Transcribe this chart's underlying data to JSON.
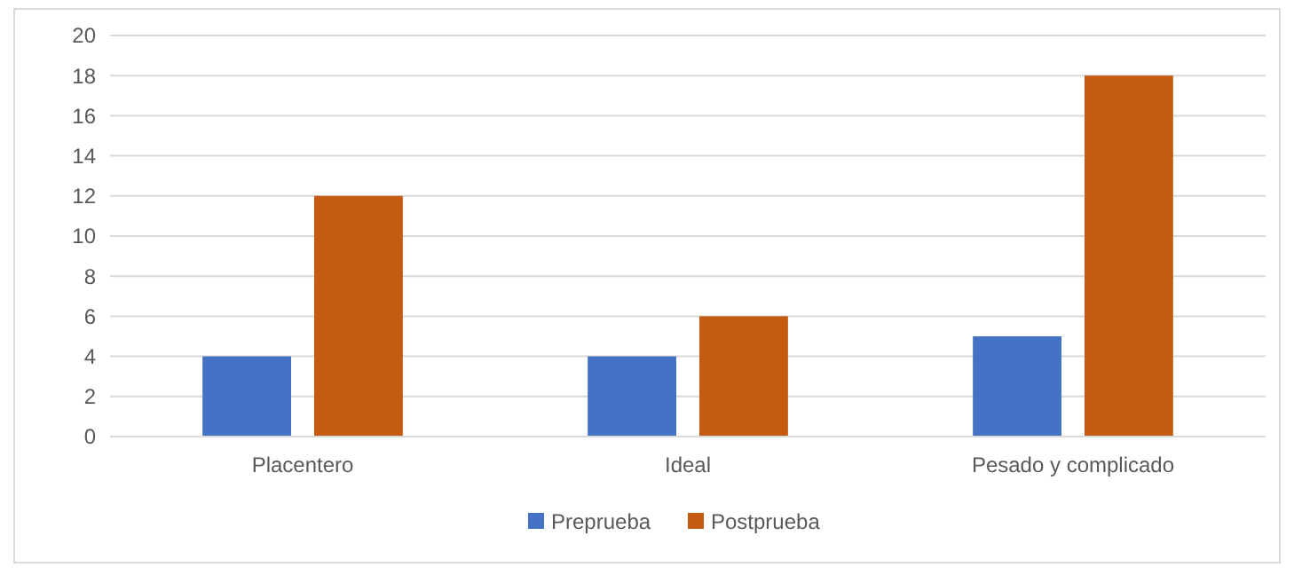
{
  "chart_data": {
    "type": "bar",
    "categories": [
      "Placentero",
      "Ideal",
      "Pesado y complicado"
    ],
    "series": [
      {
        "name": "Preprueba",
        "color": "#4472c4",
        "values": [
          4,
          4,
          5
        ]
      },
      {
        "name": "Postprueba",
        "color": "#c55a11",
        "values": [
          12,
          6,
          18
        ]
      }
    ],
    "ylim": [
      0,
      20
    ],
    "yticks": [
      0,
      2,
      4,
      6,
      8,
      10,
      12,
      14,
      16,
      18,
      20
    ],
    "grid": "y",
    "legend": "bottom"
  }
}
